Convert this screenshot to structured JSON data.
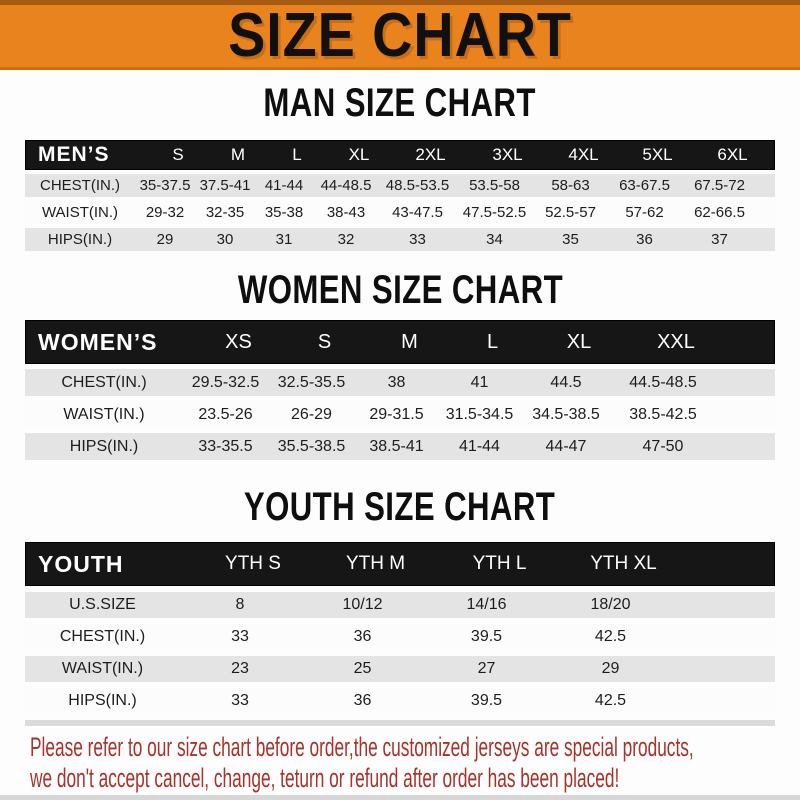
{
  "banner": {
    "title": "SIZE CHART"
  },
  "colors": {
    "banner_orange": "#E8831E",
    "banner_border_dark": "#A85B12",
    "table_header_black": "#161616",
    "row_stripe_gray": "#E4E4E4",
    "disclaimer_red": "#A8332B"
  },
  "sections": [
    {
      "id": "men",
      "heading": "MAN SIZE CHART",
      "corner": "MEN’S",
      "columns": [
        "S",
        "M",
        "L",
        "XL",
        "2XL",
        "3XL",
        "4XL",
        "5XL",
        "6XL"
      ],
      "rows": [
        {
          "label": "CHEST(IN.)",
          "values": [
            "35-37.5",
            "37.5-41",
            "41-44",
            "44-48.5",
            "48.5-53.5",
            "53.5-58",
            "58-63",
            "63-67.5",
            "67.5-72"
          ]
        },
        {
          "label": "WAIST(IN.)",
          "values": [
            "29-32",
            "32-35",
            "35-38",
            "38-43",
            "43-47.5",
            "47.5-52.5",
            "52.5-57",
            "57-62",
            "62-66.5"
          ]
        },
        {
          "label": "HIPS(IN.)",
          "values": [
            "29",
            "30",
            "31",
            "32",
            "33",
            "34",
            "35",
            "36",
            "37"
          ]
        }
      ]
    },
    {
      "id": "women",
      "heading": "WOMEN SIZE CHART",
      "corner": "WOMEN’S",
      "columns": [
        "XS",
        "S",
        "M",
        "L",
        "XL",
        "XXL"
      ],
      "rows": [
        {
          "label": "CHEST(IN.)",
          "values": [
            "29.5-32.5",
            "32.5-35.5",
            "38",
            "41",
            "44.5",
            "44.5-48.5"
          ]
        },
        {
          "label": "WAIST(IN.)",
          "values": [
            "23.5-26",
            "26-29",
            "29-31.5",
            "31.5-34.5",
            "34.5-38.5",
            "38.5-42.5"
          ]
        },
        {
          "label": "HIPS(IN.)",
          "values": [
            "33-35.5",
            "35.5-38.5",
            "38.5-41",
            "41-44",
            "44-47",
            "47-50"
          ]
        }
      ]
    },
    {
      "id": "youth",
      "heading": "YOUTH SIZE CHART",
      "corner": "YOUTH",
      "columns": [
        "YTH S",
        "YTH M",
        "YTH L",
        "YTH XL"
      ],
      "rows": [
        {
          "label": "U.S.SIZE",
          "values": [
            "8",
            "10/12",
            "14/16",
            "18/20"
          ]
        },
        {
          "label": "CHEST(IN.)",
          "values": [
            "33",
            "36",
            "39.5",
            "42.5"
          ]
        },
        {
          "label": "WAIST(IN.)",
          "values": [
            "23",
            "25",
            "27",
            "29"
          ]
        },
        {
          "label": "HIPS(IN.)",
          "values": [
            "33",
            "36",
            "39.5",
            "42.5"
          ]
        }
      ]
    }
  ],
  "disclaimer": {
    "lines": [
      "Please refer to our size chart before order,the customized jerseys are special products,",
      "we don't accept cancel, change, teturn or refund after order has been placed!"
    ]
  }
}
